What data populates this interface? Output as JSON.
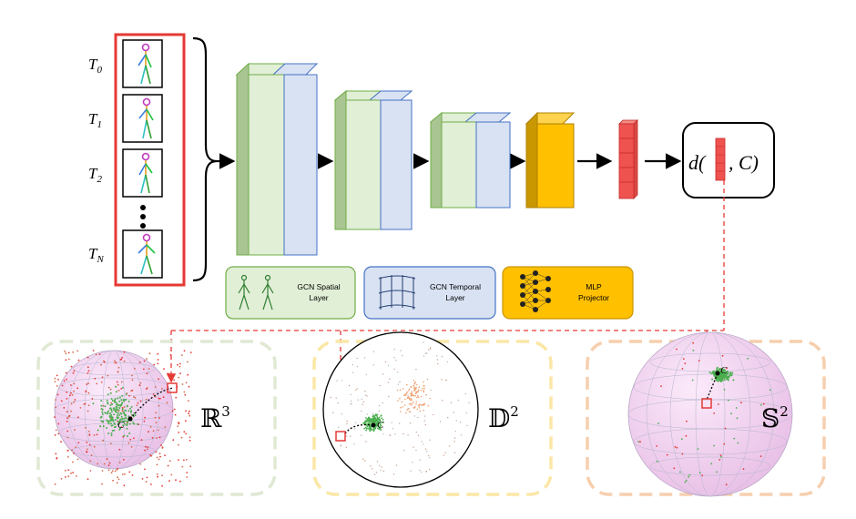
{
  "time_labels": [
    {
      "base": "T",
      "sub": "0"
    },
    {
      "base": "T",
      "sub": "1"
    },
    {
      "base": "T",
      "sub": "2"
    },
    {
      "base": "T",
      "sub": "N"
    }
  ],
  "legend": {
    "spatial": {
      "line1": "GCN Spatial",
      "line2": "Layer"
    },
    "temporal": {
      "line1": "GCN Temporal",
      "line2": "Layer"
    },
    "mlp": {
      "line1": "MLP",
      "line2": "Projector"
    }
  },
  "distance": {
    "prefix": "d(",
    "suffix": ", C)"
  },
  "spaces": {
    "euclidean": {
      "symbol": "ℝ",
      "exp": "3",
      "center": "C"
    },
    "poincare": {
      "symbol": "𝔻",
      "exp": "2",
      "center": "C"
    },
    "sphere": {
      "symbol": "𝕊",
      "exp": "2",
      "center": "C"
    }
  },
  "colors": {
    "green_face": "#e1efd6",
    "green_side": "#a9c592",
    "green_edge": "#70ad47",
    "blue_face": "#d9e2f3",
    "blue_edge": "#4472c4",
    "yellow_face": "#ffc000",
    "yellow_side": "#c99700",
    "red": "#e53935",
    "green_panel": "#dfe9d3",
    "yellow_panel": "#fbe7a6",
    "orange_panel": "#f6cfae",
    "sphere_fill": "#f4d6f1"
  }
}
